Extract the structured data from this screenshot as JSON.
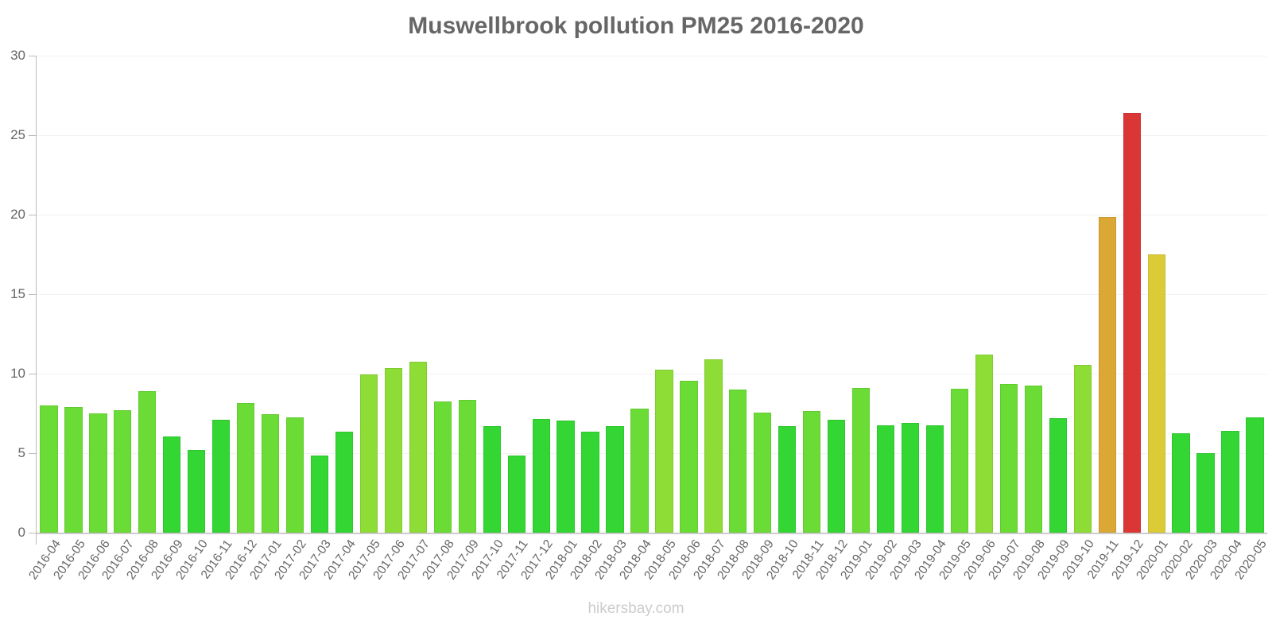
{
  "chart_data": {
    "type": "bar",
    "title": "Muswellbrook pollution PM25 2016-2020",
    "xlabel": "",
    "ylabel": "",
    "ylim": [
      0,
      30
    ],
    "yticks": [
      0,
      5,
      10,
      15,
      20,
      25,
      30
    ],
    "grid": true,
    "legend": null,
    "categories": [
      "2016-04",
      "2016-05",
      "2016-06",
      "2016-07",
      "2016-08",
      "2016-09",
      "2016-10",
      "2016-11",
      "2016-12",
      "2017-01",
      "2017-02",
      "2017-03",
      "2017-04",
      "2017-05",
      "2017-06",
      "2017-07",
      "2017-08",
      "2017-09",
      "2017-10",
      "2017-11",
      "2017-12",
      "2018-01",
      "2018-02",
      "2018-03",
      "2018-04",
      "2018-05",
      "2018-06",
      "2018-07",
      "2018-08",
      "2018-09",
      "2018-10",
      "2018-11",
      "2018-12",
      "2019-01",
      "2019-02",
      "2019-03",
      "2019-04",
      "2019-05",
      "2019-06",
      "2019-07",
      "2019-08",
      "2019-09",
      "2019-10",
      "2019-11",
      "2019-12",
      "2020-01",
      "2020-02",
      "2020-03",
      "2020-04",
      "2020-05"
    ],
    "values": [
      8.0,
      7.9,
      7.5,
      7.7,
      8.9,
      6.05,
      5.2,
      7.1,
      8.15,
      7.45,
      7.25,
      4.85,
      6.35,
      9.95,
      10.35,
      10.75,
      8.25,
      8.35,
      6.7,
      4.85,
      7.15,
      7.05,
      6.35,
      6.7,
      7.8,
      10.25,
      9.55,
      10.9,
      9.0,
      7.55,
      6.7,
      7.65,
      7.1,
      9.1,
      6.75,
      6.9,
      6.75,
      9.05,
      11.2,
      9.35,
      9.25,
      7.2,
      10.55,
      19.85,
      26.4,
      17.5,
      6.25,
      5.0,
      6.4,
      7.25
    ],
    "colors": [
      "#6bdc36",
      "#6bdc36",
      "#6bdc36",
      "#6bdc36",
      "#6bdc36",
      "#33d633",
      "#33d633",
      "#33d633",
      "#6bdc36",
      "#6bdc36",
      "#6bdc36",
      "#33d633",
      "#33d633",
      "#8edc36",
      "#8edc36",
      "#8edc36",
      "#6bdc36",
      "#6bdc36",
      "#33d633",
      "#33d633",
      "#33d633",
      "#33d633",
      "#33d633",
      "#33d633",
      "#6bdc36",
      "#8edc36",
      "#6bdc36",
      "#8edc36",
      "#6bdc36",
      "#6bdc36",
      "#33d633",
      "#6bdc36",
      "#33d633",
      "#6bdc36",
      "#33d633",
      "#33d633",
      "#33d633",
      "#6bdc36",
      "#8edc36",
      "#6bdc36",
      "#6bdc36",
      "#33d633",
      "#8edc36",
      "#dba836",
      "#db3636",
      "#dbcb36",
      "#33d633",
      "#33d633",
      "#33d633",
      "#33d633"
    ]
  },
  "watermark": "hikersbay.com"
}
